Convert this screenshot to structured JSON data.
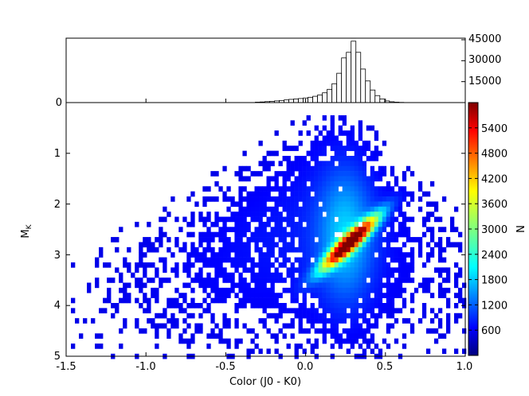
{
  "chart_data": [
    {
      "type": "bar",
      "panel": "top-histogram",
      "x": [
        -0.3,
        -0.27,
        -0.24,
        -0.21,
        -0.18,
        -0.15,
        -0.12,
        -0.09,
        -0.06,
        -0.03,
        0.0,
        0.03,
        0.06,
        0.09,
        0.12,
        0.15,
        0.18,
        0.21,
        0.24,
        0.27,
        0.3,
        0.33,
        0.36,
        0.39,
        0.42,
        0.45,
        0.48,
        0.51,
        0.54,
        0.57,
        0.6
      ],
      "values": [
        300,
        450,
        700,
        900,
        1200,
        1500,
        1900,
        2300,
        2600,
        2900,
        3300,
        3800,
        4500,
        5500,
        7000,
        9500,
        13500,
        21000,
        32000,
        36000,
        44000,
        36000,
        24000,
        15500,
        9000,
        5000,
        2600,
        1200,
        600,
        300,
        150
      ],
      "ylim": [
        0,
        45000
      ],
      "yticks": [
        "0",
        "15000",
        "30000",
        "45000"
      ],
      "xlim": [
        -1.5,
        1.0
      ]
    },
    {
      "type": "heatmap",
      "panel": "main-2d-histogram",
      "xlabel": "Color (J0 - K0)",
      "ylabel": "M",
      "ylabel_sub": "K",
      "xlim": [
        -1.5,
        1.0
      ],
      "ylim": [
        5,
        0
      ],
      "xticks": [
        "-1.5",
        "-1.0",
        "-0.5",
        "0.0",
        "0.5",
        "1.0"
      ],
      "yticks": [
        "1",
        "2",
        "3",
        "4",
        "5"
      ],
      "grid": false,
      "peak": {
        "x": 0.28,
        "y": 2.75,
        "value": 6000
      },
      "colorbar": {
        "label": "N",
        "range": [
          0,
          6000
        ],
        "ticks": [
          "600",
          "1200",
          "1800",
          "2400",
          "3000",
          "3600",
          "4200",
          "4800",
          "5400"
        ],
        "colormap": [
          "#00007f",
          "#0000ff",
          "#007fff",
          "#00ffff",
          "#7fff7f",
          "#ffff00",
          "#ff7f00",
          "#ff0000",
          "#7f0000"
        ]
      }
    }
  ]
}
